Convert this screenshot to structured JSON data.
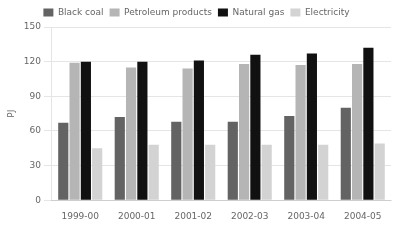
{
  "chart_data": {
    "type": "bar",
    "categories": [
      "1999-00",
      "2000-01",
      "2001-02",
      "2002-03",
      "2003-04",
      "2004-05"
    ],
    "series": [
      {
        "name": "Black coal",
        "color": "#636363",
        "values": [
          67,
          72,
          68,
          68,
          73,
          80
        ]
      },
      {
        "name": "Petroleum products",
        "color": "#b5b5b5",
        "values": [
          119,
          115,
          114,
          118,
          117,
          118
        ]
      },
      {
        "name": "Natural gas",
        "color": "#111111",
        "values": [
          120,
          120,
          121,
          126,
          127,
          132
        ]
      },
      {
        "name": "Electricity",
        "color": "#d3d3d3",
        "values": [
          45,
          48,
          48,
          48,
          48,
          49
        ]
      }
    ],
    "y_label": "PJ",
    "ylim": [
      0,
      150
    ],
    "yticks": [
      0,
      30,
      60,
      90,
      120,
      150
    ],
    "grid": true,
    "legend": "top"
  }
}
